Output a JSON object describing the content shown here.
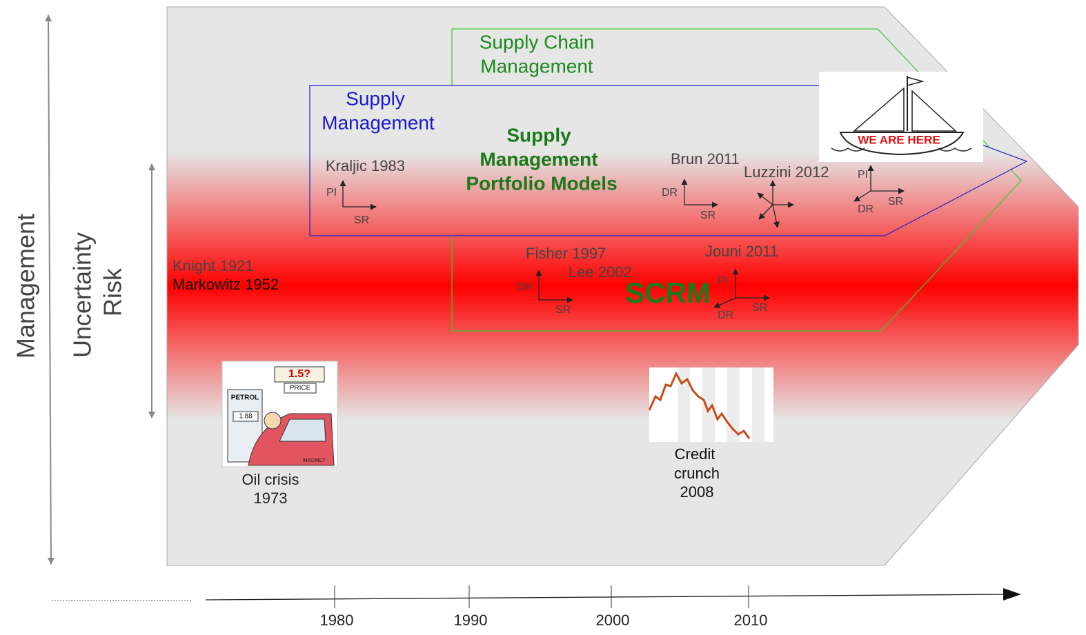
{
  "side_labels": {
    "outer": "Management",
    "inner_top": "Uncertainty",
    "inner_bottom": "Risk"
  },
  "regions": {
    "supply_chain_management": [
      "Supply Chain",
      "Management"
    ],
    "supply_management": [
      "Supply",
      "Management"
    ],
    "portfolio_models": [
      "Supply",
      "Management",
      "Portfolio Models"
    ],
    "scrm": "SCRM"
  },
  "references": {
    "knight": "Knight 1921",
    "markowitz": "Markowitz 1952",
    "kraljic": "Kraljic 1983",
    "brun": "Brun 2011",
    "luzzini": "Luzzini 2012",
    "fisher": "Fisher 1997",
    "lee": "Lee 2002",
    "jouni": "Jouni 2011"
  },
  "mini_axes": [
    {
      "vertical": "PI",
      "horizontal": "SR"
    },
    {
      "vertical": "DR",
      "horizontal": "SR"
    },
    {
      "vertical": "PI",
      "horizontal": "SR",
      "diagonal": "DR"
    },
    {
      "vertical": "DR",
      "horizontal": "SR"
    },
    {
      "vertical": "PI",
      "horizontal": "SR",
      "diagonal": "DR"
    }
  ],
  "badge": "WE ARE HERE",
  "events": {
    "oil_crisis": [
      "Oil crisis",
      "1973"
    ],
    "credit_crunch": [
      "Credit",
      "crunch",
      "2008"
    ]
  },
  "cartoon": {
    "price": "1.5?",
    "sign": "PRICE",
    "pump": "PETROL",
    "meter": "1.88",
    "credit": "INKCINCT"
  },
  "timeline": [
    "1980",
    "1990",
    "2000",
    "2010"
  ]
}
